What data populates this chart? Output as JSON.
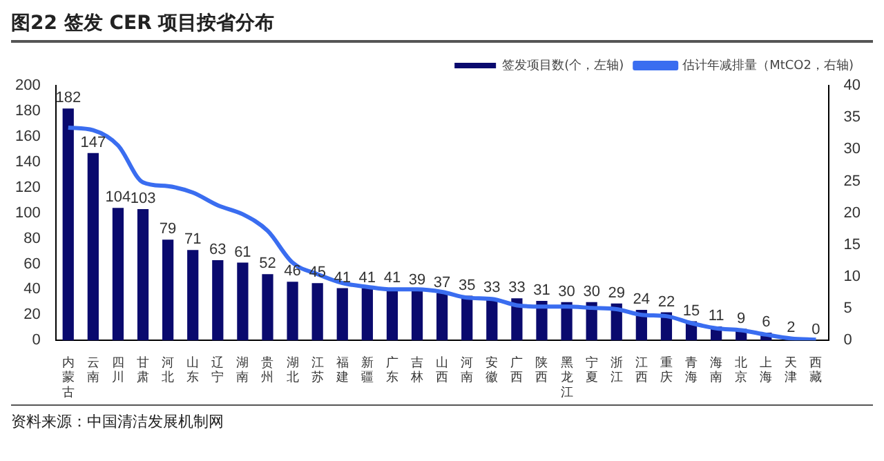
{
  "chart_data": {
    "type": "bar",
    "title": "图22 签发 CER 项目按省分布",
    "categories": [
      "内蒙古",
      "云南",
      "四川",
      "甘肃",
      "河北",
      "山东",
      "辽宁",
      "湖南",
      "贵州",
      "湖北",
      "江苏",
      "福建",
      "新疆",
      "广东",
      "吉林",
      "山西",
      "河南",
      "安徽",
      "广西",
      "陕西",
      "黑龙江",
      "宁夏",
      "浙江",
      "江西",
      "重庆",
      "青海",
      "海南",
      "北京",
      "上海",
      "天津",
      "西藏"
    ],
    "series": [
      {
        "name": "签发项目数(个，左轴)",
        "color": "#0a0a6e",
        "values": [
          182,
          147,
          104,
          103,
          79,
          71,
          63,
          61,
          52,
          46,
          45,
          41,
          41,
          41,
          39,
          37,
          35,
          33,
          33,
          31,
          30,
          30,
          29,
          24,
          22,
          15,
          11,
          9,
          6,
          2,
          0
        ],
        "value_labels": [
          "182",
          "147",
          "104",
          "103",
          "79",
          "71",
          "63",
          "61",
          "52",
          "46",
          "45",
          "41",
          "41",
          "41",
          "39",
          "37",
          "35",
          "33",
          "33",
          "31",
          "30",
          "30",
          "29",
          "24",
          "22",
          "15",
          "11",
          "9",
          "6",
          "2",
          "0"
        ]
      },
      {
        "name": "估计年减排量（MtCO2，右轴)",
        "type": "line",
        "axis": "y2",
        "color": "#3a6df0",
        "values": [
          33.4,
          33,
          30.6,
          24.8,
          24.2,
          23.2,
          21.2,
          19.8,
          17.2,
          12.2,
          10.4,
          9,
          8.4,
          8,
          8,
          7.6,
          6.7,
          6.5,
          5.5,
          5.3,
          5.3,
          5.1,
          4.9,
          4,
          3.8,
          2.7,
          1.9,
          1.6,
          0.9,
          0.3,
          0.1
        ]
      }
    ],
    "ylim": [
      0,
      200
    ],
    "yticks": [
      0,
      20,
      40,
      60,
      80,
      100,
      120,
      140,
      160,
      180,
      200
    ],
    "y2lim": [
      0,
      40
    ],
    "y2ticks": [
      0,
      5,
      10,
      15,
      20,
      25,
      30,
      35,
      40
    ],
    "legend": "top right",
    "grid": false,
    "marker": "none",
    "line_style": "solid",
    "annotations": [
      "资料来源：中国清洁发展机制网"
    ]
  }
}
